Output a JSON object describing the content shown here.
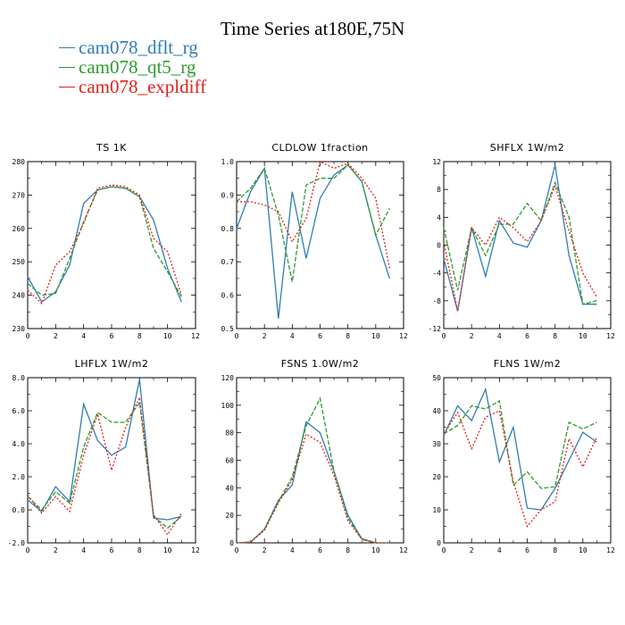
{
  "title": "Time Series at180E,75N",
  "legend": [
    {
      "label": "cam078_dflt_rg",
      "color": "#2f7cb3"
    },
    {
      "label": "cam078_qt5_rg",
      "color": "#2e9a2e"
    },
    {
      "label": "cam078_expldiff",
      "color": "#e0201c"
    }
  ],
  "chart_data": [
    {
      "type": "line",
      "title": "TS   1K",
      "x": [
        0,
        1,
        2,
        3,
        4,
        5,
        6,
        7,
        8,
        9,
        10,
        11
      ],
      "xlim": [
        0,
        12
      ],
      "xticks": [
        0,
        2,
        4,
        6,
        8,
        10,
        12
      ],
      "ylim": [
        230,
        280
      ],
      "yticks": [
        230,
        240,
        250,
        260,
        270,
        280
      ],
      "yticklabels": [
        "230",
        "240",
        "250",
        "260",
        "270",
        "280"
      ],
      "series": [
        {
          "name": "cam078_dflt_rg",
          "values": [
            245.5,
            238,
            241,
            249,
            267.5,
            271.5,
            272.5,
            272,
            269.5,
            262.5,
            248,
            238
          ]
        },
        {
          "name": "cam078_qt5_rg",
          "values": [
            243.5,
            240,
            240.5,
            251,
            262,
            271.5,
            272.5,
            272,
            269.5,
            254,
            247,
            239.5
          ]
        },
        {
          "name": "cam078_expldiff",
          "values": [
            241.5,
            237.5,
            249,
            253,
            261.5,
            272,
            273,
            272.5,
            270,
            257,
            253,
            240
          ]
        }
      ]
    },
    {
      "type": "line",
      "title": "CLDLOW   1fraction",
      "x": [
        0,
        1,
        2,
        3,
        4,
        5,
        6,
        7,
        8,
        9,
        10,
        11
      ],
      "xlim": [
        0,
        12
      ],
      "xticks": [
        0,
        2,
        4,
        6,
        8,
        10,
        12
      ],
      "ylim": [
        0.5,
        1.0
      ],
      "yticks": [
        0.5,
        0.6,
        0.7,
        0.8,
        0.9,
        1.0
      ],
      "yticklabels": [
        "0.5",
        "0.6",
        "0.7",
        "0.8",
        "0.9",
        "1.0"
      ],
      "series": [
        {
          "name": "cam078_dflt_rg",
          "values": [
            0.8,
            0.91,
            0.98,
            0.53,
            0.91,
            0.71,
            0.89,
            0.96,
            0.99,
            0.94,
            0.78,
            0.65
          ]
        },
        {
          "name": "cam078_qt5_rg",
          "values": [
            0.88,
            0.92,
            0.98,
            0.84,
            0.64,
            0.93,
            0.95,
            0.95,
            0.99,
            0.94,
            0.78,
            0.86
          ]
        },
        {
          "name": "cam078_expldiff",
          "values": [
            0.88,
            0.88,
            0.87,
            0.85,
            0.76,
            0.83,
            1.0,
            0.98,
            0.995,
            0.95,
            0.89,
            0.68
          ]
        }
      ]
    },
    {
      "type": "line",
      "title": "SHFLX   1W/m2",
      "x": [
        0,
        1,
        2,
        3,
        4,
        5,
        6,
        7,
        8,
        9,
        10,
        11
      ],
      "xlim": [
        0,
        12
      ],
      "xticks": [
        0,
        2,
        4,
        6,
        8,
        10,
        12
      ],
      "ylim": [
        -12,
        12
      ],
      "yticks": [
        -12,
        -8,
        -4,
        0,
        4,
        8,
        12
      ],
      "yticklabels": [
        "-12",
        "-8",
        "-4",
        "0",
        "4",
        "8",
        "12"
      ],
      "series": [
        {
          "name": "cam078_dflt_rg",
          "values": [
            -2,
            -9.5,
            2.5,
            -4.5,
            3.5,
            0.3,
            -0.3,
            3.5,
            11.5,
            -1.5,
            -8.5,
            -8.5
          ]
        },
        {
          "name": "cam078_qt5_rg",
          "values": [
            2.5,
            -6.5,
            2.5,
            -1.5,
            3,
            3,
            6,
            3.5,
            9,
            4,
            -8.5,
            -8
          ]
        },
        {
          "name": "cam078_expldiff",
          "values": [
            0.5,
            -9.5,
            2.5,
            0,
            4,
            2.5,
            0.5,
            3.5,
            8.5,
            2,
            -4,
            -7.5
          ]
        }
      ]
    },
    {
      "type": "line",
      "title": "LHFLX   1W/m2",
      "x": [
        0,
        1,
        2,
        3,
        4,
        5,
        6,
        7,
        8,
        9,
        10,
        11
      ],
      "xlim": [
        0,
        12
      ],
      "xticks": [
        0,
        2,
        4,
        6,
        8,
        10,
        12
      ],
      "ylim": [
        -2,
        8
      ],
      "yticks": [
        -2,
        0,
        2,
        4,
        6,
        8
      ],
      "yticklabels": [
        "-2.0",
        "0.0",
        "2.0",
        "4.0",
        "6.0",
        "8.0"
      ],
      "series": [
        {
          "name": "cam078_dflt_rg",
          "values": [
            0.6,
            -0.1,
            1.4,
            0.5,
            6.4,
            4.2,
            3.3,
            3.8,
            7.9,
            -0.5,
            -0.6,
            -0.4
          ]
        },
        {
          "name": "cam078_qt5_rg",
          "values": [
            0.8,
            0,
            1.1,
            0.4,
            3.8,
            5.9,
            5.3,
            5.3,
            6.5,
            -0.4,
            -1.1,
            -0.4
          ]
        },
        {
          "name": "cam078_expldiff",
          "values": [
            0.9,
            -0.2,
            0.8,
            -0.1,
            3.3,
            5.8,
            2.4,
            5.0,
            6.8,
            -0.3,
            -1.5,
            -0.2
          ]
        }
      ]
    },
    {
      "type": "line",
      "title": "FSNS   1.0W/m2",
      "x": [
        0,
        1,
        2,
        3,
        4,
        5,
        6,
        7,
        8,
        9,
        10,
        11
      ],
      "xlim": [
        0,
        12
      ],
      "xticks": [
        0,
        2,
        4,
        6,
        8,
        10,
        12
      ],
      "ylim": [
        0,
        120
      ],
      "yticks": [
        0,
        20,
        40,
        60,
        80,
        100,
        120
      ],
      "yticklabels": [
        "0",
        "20",
        "40",
        "60",
        "80",
        "100",
        "120"
      ],
      "series": [
        {
          "name": "cam078_dflt_rg",
          "values": [
            0,
            0.5,
            10,
            31,
            42,
            88,
            80,
            52,
            20,
            3,
            0,
            0
          ]
        },
        {
          "name": "cam078_qt5_rg",
          "values": [
            0,
            0.5,
            10,
            30,
            48,
            85,
            105,
            52,
            18,
            2.5,
            0,
            0
          ]
        },
        {
          "name": "cam078_expldiff",
          "values": [
            0,
            0.5,
            9,
            29,
            46,
            79,
            73,
            49,
            16,
            2.5,
            0,
            0
          ]
        }
      ]
    },
    {
      "type": "line",
      "title": "FLNS   1W/m2",
      "x": [
        0,
        1,
        2,
        3,
        4,
        5,
        6,
        7,
        8,
        9,
        10,
        11
      ],
      "xlim": [
        0,
        12
      ],
      "xticks": [
        0,
        2,
        4,
        6,
        8,
        10,
        12
      ],
      "ylim": [
        0,
        50
      ],
      "yticks": [
        0,
        10,
        20,
        30,
        40,
        50
      ],
      "yticklabels": [
        "0",
        "10",
        "20",
        "30",
        "40",
        "50"
      ],
      "series": [
        {
          "name": "cam078_dflt_rg",
          "values": [
            32.5,
            41.5,
            37,
            46.5,
            24.5,
            35,
            10.5,
            10,
            16.5,
            25,
            33.5,
            30.5
          ]
        },
        {
          "name": "cam078_qt5_rg",
          "values": [
            33,
            35.5,
            41.5,
            40.5,
            43,
            17.5,
            21.5,
            16.5,
            17,
            36.5,
            34.5,
            36.5
          ]
        },
        {
          "name": "cam078_expldiff",
          "values": [
            33,
            39.5,
            28.5,
            38,
            40,
            18.5,
            5,
            10,
            12.5,
            31.5,
            23,
            32
          ]
        }
      ]
    }
  ]
}
